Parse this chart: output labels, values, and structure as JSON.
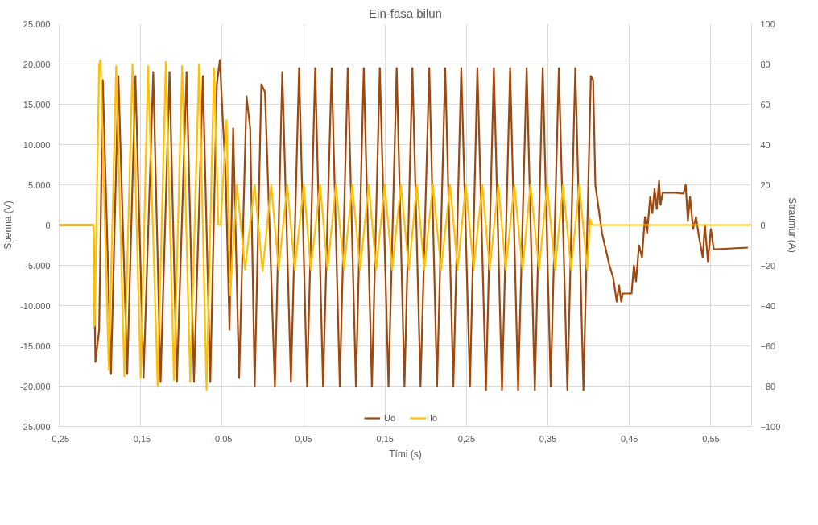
{
  "chart_data": {
    "type": "line",
    "title": "Ein-fasa bilun",
    "xlabel": "Tími (s)",
    "ylabel": "Spenna (V)",
    "y2label": "Straumur (A)",
    "xlim": [
      -0.25,
      0.6
    ],
    "xticks": [
      {
        "value": -0.25,
        "label": "-0,25"
      },
      {
        "value": -0.15,
        "label": "-0,15"
      },
      {
        "value": -0.05,
        "label": "-0,05"
      },
      {
        "value": 0.05,
        "label": "0,05"
      },
      {
        "value": 0.15,
        "label": "0,15"
      },
      {
        "value": 0.25,
        "label": "0,25"
      },
      {
        "value": 0.35,
        "label": "0,35"
      },
      {
        "value": 0.45,
        "label": "0,45"
      },
      {
        "value": 0.55,
        "label": "0,55"
      }
    ],
    "ylim": [
      -25000,
      25000
    ],
    "yticks": [
      {
        "value": -25000,
        "label": "-25.000"
      },
      {
        "value": -20000,
        "label": "-20.000"
      },
      {
        "value": -15000,
        "label": "-15.000"
      },
      {
        "value": -10000,
        "label": "-10.000"
      },
      {
        "value": -5000,
        "label": "-5.000"
      },
      0,
      {
        "value": 5000,
        "label": "5.000"
      },
      {
        "value": 10000,
        "label": "10.000"
      },
      {
        "value": 15000,
        "label": "15.000"
      },
      {
        "value": 20000,
        "label": "20.000"
      },
      {
        "value": 25000,
        "label": "25.000"
      }
    ],
    "y2lim": [
      -100,
      100
    ],
    "y2ticks": [
      -100,
      -80,
      -60,
      -40,
      -20,
      0,
      20,
      40,
      60,
      80,
      100
    ],
    "grid": true,
    "legend": "bottom",
    "series": [
      {
        "name": "Uo",
        "color": "#9e480e",
        "x": [
          -0.25,
          -0.208,
          -0.2055,
          -0.2009,
          -0.1964,
          -0.1864,
          -0.1773,
          -0.1664,
          -0.1564,
          -0.1464,
          -0.1345,
          -0.1255,
          -0.1145,
          -0.1055,
          -0.0936,
          -0.0845,
          -0.0736,
          -0.0645,
          -0.0564,
          -0.0527,
          -0.0491,
          -0.0455,
          -0.0409,
          -0.0364,
          -0.0291,
          -0.02,
          -0.0155,
          -0.01,
          -0.0018,
          0.0027,
          0.0148,
          0.0239,
          0.0345,
          0.0445,
          0.0543,
          0.0643,
          0.0739,
          0.0845,
          0.0945,
          0.1043,
          0.1143,
          0.1239,
          0.1339,
          0.1436,
          0.1543,
          0.1643,
          0.1739,
          0.1836,
          0.1936,
          0.2043,
          0.2139,
          0.2239,
          0.2339,
          0.2436,
          0.2543,
          0.2634,
          0.2739,
          0.2836,
          0.2936,
          0.3036,
          0.3134,
          0.3239,
          0.3339,
          0.3436,
          0.3534,
          0.3634,
          0.3739,
          0.3836,
          0.3936,
          0.4027,
          0.4055,
          0.4082,
          0.4164,
          0.4255,
          0.43,
          0.4345,
          0.4373,
          0.44,
          0.4418,
          0.4527,
          0.4555,
          0.4582,
          0.4618,
          0.4655,
          0.4691,
          0.4718,
          0.4755,
          0.4782,
          0.4809,
          0.4836,
          0.4864,
          0.4882,
          0.4909,
          0.5073,
          0.5164,
          0.5191,
          0.5218,
          0.5245,
          0.5282,
          0.5318,
          0.5355,
          0.54,
          0.5427,
          0.5464,
          0.55,
          0.5536,
          0.5573,
          0.5955
        ],
        "values": [
          0,
          0,
          -17000,
          -13000,
          18000,
          -18500,
          18500,
          -18500,
          18500,
          -19000,
          19000,
          -19500,
          19000,
          -19500,
          19000,
          -19500,
          18500,
          -19500,
          17500,
          20500,
          13000,
          6000,
          -13000,
          12000,
          -19000,
          16000,
          12000,
          -20000,
          17500,
          16500,
          -20000,
          19000,
          -19500,
          19500,
          -20000,
          19500,
          -20000,
          19500,
          -20000,
          19500,
          -20000,
          19500,
          -20000,
          19500,
          -20000,
          19500,
          -20000,
          19500,
          -20000,
          19500,
          -20000,
          19500,
          -20000,
          19500,
          -20000,
          19500,
          -20500,
          19500,
          -20500,
          19500,
          -20500,
          19500,
          -20500,
          19500,
          -20000,
          19500,
          -20500,
          19500,
          -20500,
          18500,
          18000,
          5000,
          -1000,
          -5000,
          -6500,
          -9500,
          -7500,
          -9500,
          -8500,
          -8500,
          -5000,
          -7000,
          -2500,
          -4000,
          1000,
          -1000,
          3500,
          1500,
          4500,
          2000,
          5500,
          2500,
          4000,
          4000,
          3900,
          5000,
          500,
          3500,
          -500,
          1000,
          -1500,
          -4000,
          0,
          -4500,
          -500,
          -3000,
          -3000,
          -2800
        ]
      },
      {
        "name": "Io",
        "color": "#ffc000",
        "axis": "y2",
        "x": [
          -0.25,
          -0.208,
          -0.2064,
          -0.2009,
          -0.1991,
          -0.1891,
          -0.18,
          -0.17,
          -0.16,
          -0.15,
          -0.1409,
          -0.1291,
          -0.1191,
          -0.1091,
          -0.0991,
          -0.0891,
          -0.0782,
          -0.0691,
          -0.06,
          -0.0545,
          -0.0518,
          -0.0445,
          -0.04,
          -0.0318,
          -0.0218,
          -0.01,
          -0.0003,
          0.0103,
          0.0194,
          0.03,
          0.0391,
          0.0503,
          0.0588,
          0.0703,
          0.0794,
          0.0897,
          0.0997,
          0.1097,
          0.1194,
          0.13,
          0.1391,
          0.1497,
          0.1588,
          0.1694,
          0.1794,
          0.1891,
          0.1982,
          0.2088,
          0.2188,
          0.23,
          0.2391,
          0.2491,
          0.2588,
          0.2694,
          0.2785,
          0.2891,
          0.2982,
          0.3088,
          0.3188,
          0.3285,
          0.3391,
          0.3491,
          0.3588,
          0.3685,
          0.3785,
          0.3885,
          0.3982,
          0.4018,
          0.4036,
          0.6
        ],
        "values": [
          0,
          0,
          -50,
          80,
          82,
          -72,
          79,
          -75,
          80,
          -76,
          79,
          -80,
          81,
          -77,
          79,
          -78,
          80,
          -82,
          78,
          0,
          0,
          52,
          -35,
          20,
          -22,
          20,
          -23,
          20,
          -22,
          20,
          -22,
          20,
          -22,
          20,
          -22,
          20,
          -22,
          20,
          -22,
          20,
          -22,
          20,
          -22,
          20,
          -22,
          20,
          -22,
          20,
          -22,
          20,
          -22,
          20,
          -22,
          20,
          -22,
          20,
          -22,
          20,
          -22,
          20,
          -22,
          20,
          -22,
          20,
          -22,
          20,
          -22,
          3,
          0,
          0
        ]
      }
    ]
  }
}
